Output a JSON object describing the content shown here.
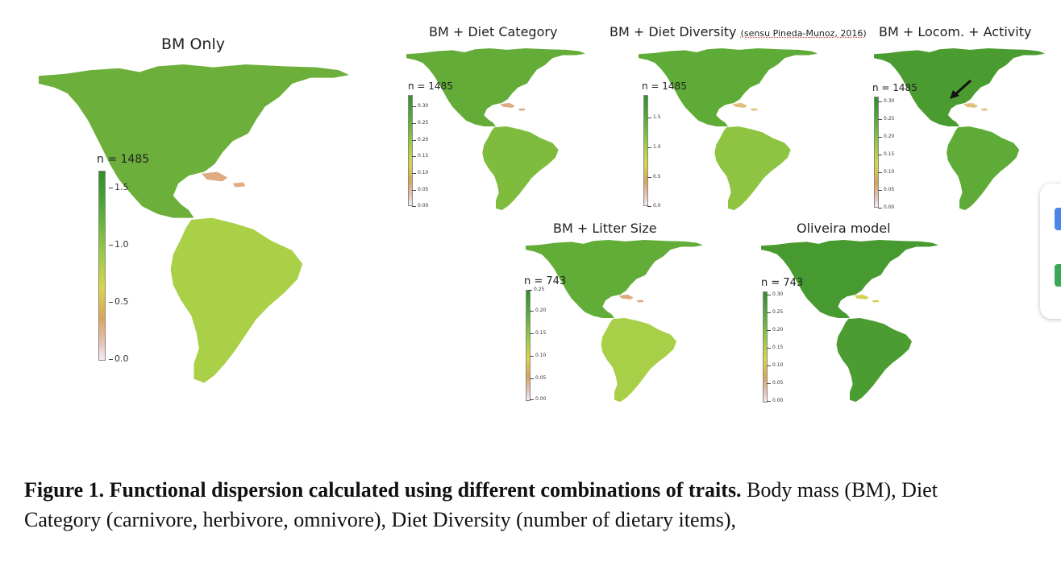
{
  "panels": [
    {
      "id": "bm-only",
      "title": "BM Only",
      "n_label": "n = 1485",
      "ticks": [
        "1.5",
        "1.0",
        "0.5",
        "0.0"
      ],
      "colors": {
        "north": "#6cb03b",
        "south": "#a9d047",
        "islands": "#e0a982"
      }
    },
    {
      "id": "diet-category",
      "title": "BM + Diet Category",
      "n_label": "n = 1485",
      "ticks": [
        "0.30",
        "0.25",
        "0.20",
        "0.15",
        "0.10",
        "0.05",
        "0.00"
      ],
      "colors": {
        "north": "#63ac38",
        "south": "#7fbc3e",
        "islands": "#e0a982"
      }
    },
    {
      "id": "diet-diversity",
      "title_main": "BM + Diet Diversity",
      "title_note": "(sensu Pineda-Munoz, 2016)",
      "n_label": "n = 1485",
      "ticks": [
        "1.5",
        "1.0",
        "0.5",
        "0.0"
      ],
      "colors": {
        "north": "#5fab37",
        "south": "#8ec441",
        "islands": "#e0c07a"
      }
    },
    {
      "id": "locom-activity",
      "title": "BM + Locom. + Activity",
      "n_label": "n = 1485",
      "ticks": [
        "0.30",
        "0.25",
        "0.20",
        "0.15",
        "0.10",
        "0.05",
        "0.00"
      ],
      "colors": {
        "north": "#4a9c30",
        "south": "#5fab37",
        "islands": "#e0c07a"
      }
    },
    {
      "id": "litter-size",
      "title": "BM + Litter Size",
      "n_label": "n = 743",
      "ticks": [
        "0.25",
        "0.20",
        "0.15",
        "0.10",
        "0.05",
        "0.00"
      ],
      "colors": {
        "north": "#62ac38",
        "south": "#a7cf47",
        "islands": "#e0a982"
      }
    },
    {
      "id": "oliveira",
      "title": "Oliveira model",
      "n_label": "n = 743",
      "ticks": [
        "0.30",
        "0.25",
        "0.20",
        "0.15",
        "0.10",
        "0.05",
        "0.00"
      ],
      "colors": {
        "north": "#479a2f",
        "south": "#4c9d31",
        "islands": "#d8cf55"
      }
    }
  ],
  "caption": {
    "bold": "Figure 1. Functional dispersion calculated using different combinations of traits.",
    "rest": " Body mass (BM), Diet Category (carnivore, herbivore, omnivore), Diet Diversity (number of dietary items),"
  }
}
